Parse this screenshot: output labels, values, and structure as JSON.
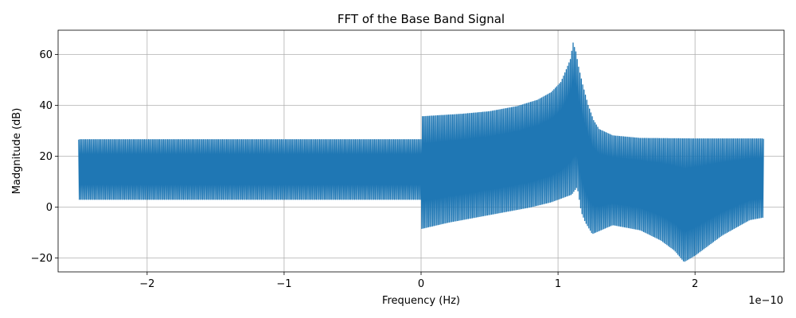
{
  "chart_data": {
    "type": "line",
    "title": "FFT of the Base Band Signal",
    "xlabel": "Frequency (Hz)",
    "ylabel": "Madgnitude (dB)",
    "x_offset_text": "1e−10",
    "xlim": [
      -2.65,
      2.65
    ],
    "ylim": [
      -25.5,
      69.5
    ],
    "xticks": [
      {
        "value": -2,
        "label": "−2"
      },
      {
        "value": -1,
        "label": "−1"
      },
      {
        "value": 0,
        "label": "0"
      },
      {
        "value": 1,
        "label": "1"
      },
      {
        "value": 2,
        "label": "2"
      }
    ],
    "yticks": [
      {
        "value": -20,
        "label": "−20"
      },
      {
        "value": 0,
        "label": "0"
      },
      {
        "value": 20,
        "label": "20"
      },
      {
        "value": 40,
        "label": "40"
      },
      {
        "value": 60,
        "label": "60"
      }
    ],
    "grid": true,
    "series": [
      {
        "color": "#1f77b4",
        "x_range": [
          -2.5,
          2.5
        ],
        "upper_envelope": [
          [
            -2.5,
            26.5
          ],
          [
            0.0,
            26.5
          ],
          [
            0.0,
            35.5
          ],
          [
            0.3,
            36.5
          ],
          [
            0.5,
            37.5
          ],
          [
            0.7,
            39.5
          ],
          [
            0.85,
            42
          ],
          [
            0.95,
            45
          ],
          [
            1.02,
            49
          ],
          [
            1.06,
            54
          ],
          [
            1.09,
            58
          ],
          [
            1.11,
            64.5
          ],
          [
            1.13,
            61
          ],
          [
            1.15,
            55
          ],
          [
            1.18,
            48
          ],
          [
            1.22,
            40
          ],
          [
            1.26,
            34
          ],
          [
            1.3,
            30.5
          ],
          [
            1.4,
            28
          ],
          [
            1.6,
            27
          ],
          [
            2.0,
            26.8
          ],
          [
            2.5,
            26.8
          ]
        ],
        "lower_envelope": [
          [
            -2.5,
            3
          ],
          [
            0.0,
            3
          ],
          [
            0.0,
            -8.5
          ],
          [
            0.2,
            -6
          ],
          [
            0.4,
            -4
          ],
          [
            0.6,
            -2
          ],
          [
            0.8,
            0
          ],
          [
            0.95,
            2
          ],
          [
            1.05,
            4
          ],
          [
            1.1,
            5
          ],
          [
            1.14,
            8
          ],
          [
            1.17,
            -2
          ],
          [
            1.2,
            -6
          ],
          [
            1.25,
            -10.5
          ],
          [
            1.4,
            -7
          ],
          [
            1.6,
            -9
          ],
          [
            1.75,
            -13
          ],
          [
            1.85,
            -17
          ],
          [
            1.92,
            -21.5
          ],
          [
            2.0,
            -19
          ],
          [
            2.1,
            -15
          ],
          [
            2.2,
            -11
          ],
          [
            2.3,
            -8
          ],
          [
            2.4,
            -5
          ],
          [
            2.5,
            -4
          ]
        ]
      }
    ]
  }
}
